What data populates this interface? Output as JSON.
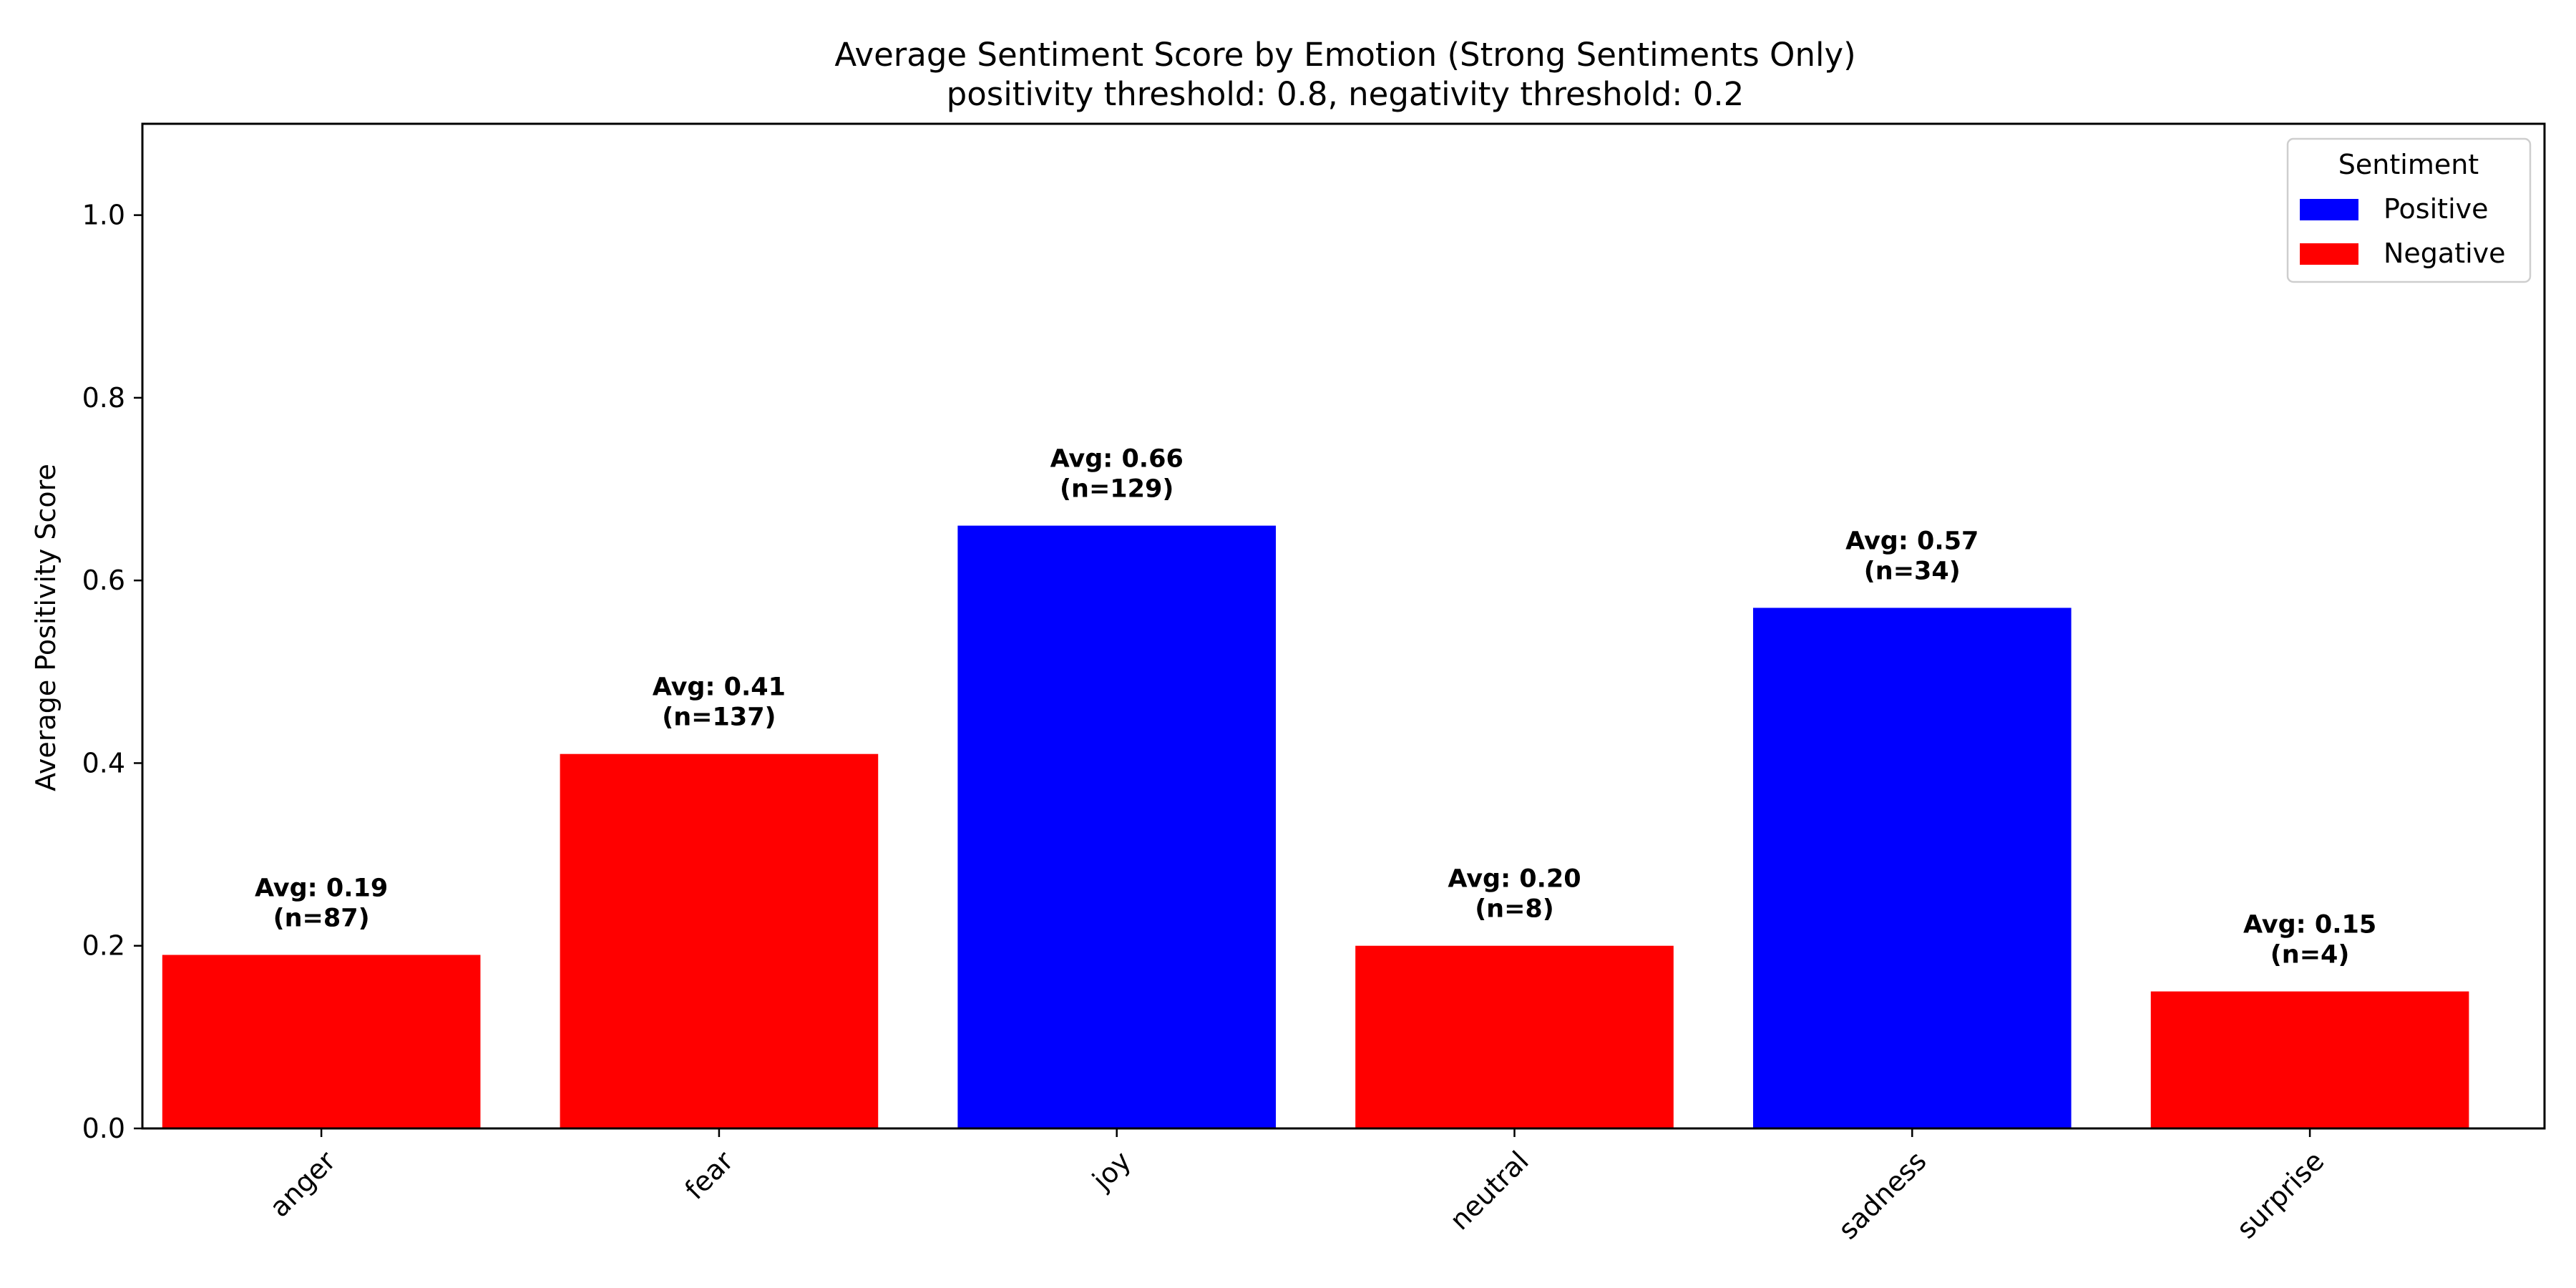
{
  "chart_data": {
    "type": "bar",
    "title": "Average Sentiment Score by Emotion (Strong Sentiments Only)",
    "subtitle": "positivity threshold: 0.8, negativity threshold: 0.2",
    "xlabel": "",
    "ylabel": "Average Positivity Score",
    "ylim": [
      0,
      1.1
    ],
    "yticks": [
      0.0,
      0.2,
      0.4,
      0.6,
      0.8,
      1.0
    ],
    "ytick_labels": [
      "0.0",
      "0.2",
      "0.4",
      "0.6",
      "0.8",
      "1.0"
    ],
    "categories": [
      "anger",
      "fear",
      "joy",
      "neutral",
      "sadness",
      "surprise"
    ],
    "values": [
      0.19,
      0.41,
      0.66,
      0.2,
      0.57,
      0.15
    ],
    "counts": [
      87,
      137,
      129,
      8,
      34,
      4
    ],
    "sentiment": [
      "Negative",
      "Negative",
      "Positive",
      "Negative",
      "Positive",
      "Negative"
    ],
    "bar_labels": [
      [
        "Avg: 0.19",
        "(n=87)"
      ],
      [
        "Avg: 0.41",
        "(n=137)"
      ],
      [
        "Avg: 0.66",
        "(n=129)"
      ],
      [
        "Avg: 0.20",
        "(n=8)"
      ],
      [
        "Avg: 0.57",
        "(n=34)"
      ],
      [
        "Avg: 0.15",
        "(n=4)"
      ]
    ],
    "legend": {
      "title": "Sentiment",
      "placement": "top-right",
      "entries": [
        {
          "label": "Positive",
          "color": "#0000ff"
        },
        {
          "label": "Negative",
          "color": "#ff0000"
        }
      ]
    },
    "colors": {
      "Positive": "#0000ff",
      "Negative": "#ff0000"
    },
    "grid": false
  }
}
